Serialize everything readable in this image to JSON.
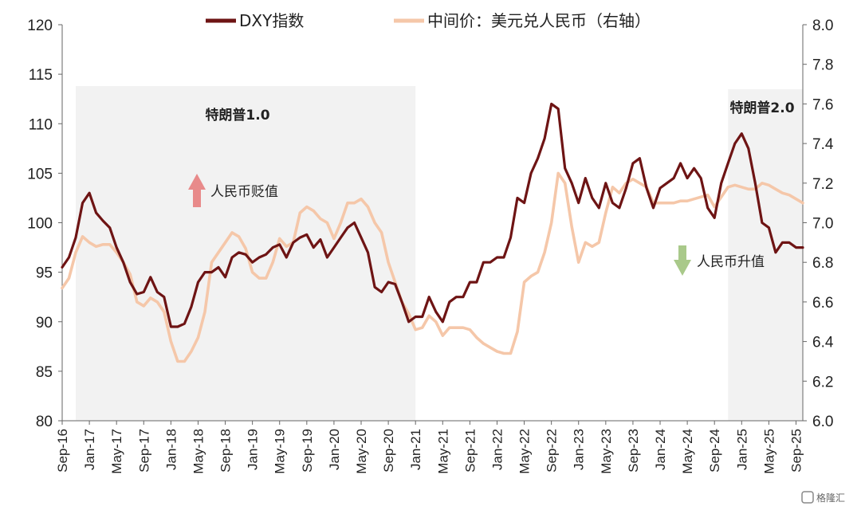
{
  "chart_data": {
    "type": "line",
    "legend": [
      "DXY指数",
      "中间价：美元兑人民币（右轴）"
    ],
    "left_axis": {
      "ylim": [
        80,
        120
      ],
      "ticks": [
        "80",
        "85",
        "90",
        "95",
        "100",
        "105",
        "110",
        "115",
        "120"
      ]
    },
    "right_axis": {
      "ylim": [
        6.0,
        8.0
      ],
      "ticks": [
        "6.0",
        "6.2",
        "6.4",
        "6.6",
        "6.8",
        "7.0",
        "7.2",
        "7.4",
        "7.6",
        "7.8",
        "8.0"
      ]
    },
    "x_range": [
      "2016-09",
      "2025-10"
    ],
    "x_tick_labels": [
      "Sep-16",
      "Jan-17",
      "May-17",
      "Sep-17",
      "Jan-18",
      "May-18",
      "Sep-18",
      "Jan-19",
      "May-19",
      "Sep-19",
      "Jan-20",
      "May-20",
      "Sep-20",
      "Jan-21",
      "May-21",
      "Sep-21",
      "Jan-22",
      "May-22",
      "Sep-22",
      "Jan-23",
      "May-23",
      "Sep-23",
      "Jan-24",
      "May-24",
      "Sep-24",
      "Jan-25",
      "May-25",
      "Sep-25"
    ],
    "regions": [
      {
        "label": "特朗普1.0",
        "start": "2016-11",
        "end": "2021-01"
      },
      {
        "label": "特朗普2.0",
        "start": "2024-11",
        "end": "2025-10"
      }
    ],
    "annotations": [
      {
        "text": "人民币贬值",
        "arrow": "up",
        "color": "#e88a8a"
      },
      {
        "text": "人民币升值",
        "arrow": "down",
        "color": "#a9c98a"
      }
    ],
    "series": [
      {
        "name": "DXY指数",
        "axis": "left",
        "color": "#6e1414",
        "x": [
          "2016-09",
          "2016-10",
          "2016-11",
          "2016-12",
          "2017-01",
          "2017-02",
          "2017-03",
          "2017-04",
          "2017-05",
          "2017-06",
          "2017-07",
          "2017-08",
          "2017-09",
          "2017-10",
          "2017-11",
          "2017-12",
          "2018-01",
          "2018-02",
          "2018-03",
          "2018-04",
          "2018-05",
          "2018-06",
          "2018-07",
          "2018-08",
          "2018-09",
          "2018-10",
          "2018-11",
          "2018-12",
          "2019-01",
          "2019-02",
          "2019-03",
          "2019-04",
          "2019-05",
          "2019-06",
          "2019-07",
          "2019-08",
          "2019-09",
          "2019-10",
          "2019-11",
          "2019-12",
          "2020-01",
          "2020-02",
          "2020-03",
          "2020-04",
          "2020-05",
          "2020-06",
          "2020-07",
          "2020-08",
          "2020-09",
          "2020-10",
          "2020-11",
          "2020-12",
          "2021-01",
          "2021-02",
          "2021-03",
          "2021-04",
          "2021-05",
          "2021-06",
          "2021-07",
          "2021-08",
          "2021-09",
          "2021-10",
          "2021-11",
          "2021-12",
          "2022-01",
          "2022-02",
          "2022-03",
          "2022-04",
          "2022-05",
          "2022-06",
          "2022-07",
          "2022-08",
          "2022-09",
          "2022-10",
          "2022-11",
          "2022-12",
          "2023-01",
          "2023-02",
          "2023-03",
          "2023-04",
          "2023-05",
          "2023-06",
          "2023-07",
          "2023-08",
          "2023-09",
          "2023-10",
          "2023-11",
          "2023-12",
          "2024-01",
          "2024-02",
          "2024-03",
          "2024-04",
          "2024-05",
          "2024-06",
          "2024-07",
          "2024-08",
          "2024-09",
          "2024-10",
          "2024-11",
          "2024-12",
          "2025-01",
          "2025-02",
          "2025-03",
          "2025-04",
          "2025-05",
          "2025-06",
          "2025-07",
          "2025-08",
          "2025-09",
          "2025-10"
        ],
        "values": [
          95.5,
          96.5,
          98.5,
          102.0,
          103.0,
          101.0,
          100.2,
          99.5,
          97.5,
          96.0,
          94.0,
          92.8,
          93.0,
          94.5,
          93.0,
          92.5,
          89.5,
          89.5,
          89.8,
          91.5,
          94.0,
          95.0,
          95.0,
          95.5,
          94.5,
          96.5,
          97.0,
          96.8,
          96.0,
          96.5,
          96.8,
          97.5,
          97.8,
          96.5,
          98.0,
          98.5,
          98.8,
          97.5,
          98.3,
          96.5,
          97.5,
          98.5,
          99.5,
          100.0,
          98.5,
          97.0,
          93.5,
          93.0,
          94.0,
          93.8,
          92.0,
          90.0,
          90.5,
          90.5,
          92.5,
          91.0,
          90.0,
          92.0,
          92.5,
          92.5,
          94.0,
          94.0,
          96.0,
          96.0,
          96.5,
          96.5,
          98.5,
          102.5,
          102.0,
          105.0,
          106.5,
          108.5,
          112.0,
          111.5,
          105.5,
          104.0,
          102.0,
          104.5,
          102.5,
          101.5,
          104.0,
          102.0,
          101.5,
          103.5,
          106.0,
          106.5,
          103.5,
          101.5,
          103.5,
          104.0,
          104.5,
          106.0,
          104.5,
          105.5,
          104.5,
          101.5,
          100.5,
          104.0,
          106.0,
          108.0,
          109.0,
          107.5,
          104.0,
          100.0,
          99.5,
          97.0,
          98.0,
          98.0,
          97.5,
          97.5
        ]
      },
      {
        "name": "中间价：美元兑人民币（右轴）",
        "axis": "right",
        "color": "#f5c7a9",
        "x": [
          "2016-09",
          "2016-10",
          "2016-11",
          "2016-12",
          "2017-01",
          "2017-02",
          "2017-03",
          "2017-04",
          "2017-05",
          "2017-06",
          "2017-07",
          "2017-08",
          "2017-09",
          "2017-10",
          "2017-11",
          "2017-12",
          "2018-01",
          "2018-02",
          "2018-03",
          "2018-04",
          "2018-05",
          "2018-06",
          "2018-07",
          "2018-08",
          "2018-09",
          "2018-10",
          "2018-11",
          "2018-12",
          "2019-01",
          "2019-02",
          "2019-03",
          "2019-04",
          "2019-05",
          "2019-06",
          "2019-07",
          "2019-08",
          "2019-09",
          "2019-10",
          "2019-11",
          "2019-12",
          "2020-01",
          "2020-02",
          "2020-03",
          "2020-04",
          "2020-05",
          "2020-06",
          "2020-07",
          "2020-08",
          "2020-09",
          "2020-10",
          "2020-11",
          "2020-12",
          "2021-01",
          "2021-02",
          "2021-03",
          "2021-04",
          "2021-05",
          "2021-06",
          "2021-07",
          "2021-08",
          "2021-09",
          "2021-10",
          "2021-11",
          "2021-12",
          "2022-01",
          "2022-02",
          "2022-03",
          "2022-04",
          "2022-05",
          "2022-06",
          "2022-07",
          "2022-08",
          "2022-09",
          "2022-10",
          "2022-11",
          "2022-12",
          "2023-01",
          "2023-02",
          "2023-03",
          "2023-04",
          "2023-05",
          "2023-06",
          "2023-07",
          "2023-08",
          "2023-09",
          "2023-10",
          "2023-11",
          "2023-12",
          "2024-01",
          "2024-02",
          "2024-03",
          "2024-04",
          "2024-05",
          "2024-06",
          "2024-07",
          "2024-08",
          "2024-09",
          "2024-10",
          "2024-11",
          "2024-12",
          "2025-01",
          "2025-02",
          "2025-03",
          "2025-04",
          "2025-05",
          "2025-06",
          "2025-07",
          "2025-08",
          "2025-09",
          "2025-10"
        ],
        "values": [
          6.67,
          6.72,
          6.85,
          6.93,
          6.9,
          6.88,
          6.89,
          6.89,
          6.85,
          6.8,
          6.74,
          6.6,
          6.58,
          6.62,
          6.6,
          6.55,
          6.4,
          6.3,
          6.3,
          6.35,
          6.42,
          6.55,
          6.8,
          6.85,
          6.9,
          6.95,
          6.93,
          6.87,
          6.75,
          6.72,
          6.72,
          6.8,
          6.92,
          6.88,
          6.9,
          7.05,
          7.08,
          7.06,
          7.02,
          7.0,
          6.92,
          7.0,
          7.1,
          7.1,
          7.12,
          7.08,
          7.0,
          6.95,
          6.8,
          6.7,
          6.6,
          6.54,
          6.46,
          6.47,
          6.53,
          6.5,
          6.43,
          6.47,
          6.47,
          6.47,
          6.46,
          6.42,
          6.39,
          6.37,
          6.35,
          6.34,
          6.34,
          6.45,
          6.7,
          6.73,
          6.75,
          6.85,
          7.0,
          7.25,
          7.2,
          6.98,
          6.8,
          6.9,
          6.88,
          6.9,
          7.05,
          7.18,
          7.15,
          7.2,
          7.22,
          7.2,
          7.18,
          7.1,
          7.1,
          7.1,
          7.1,
          7.11,
          7.11,
          7.12,
          7.13,
          7.14,
          7.08,
          7.13,
          7.18,
          7.19,
          7.18,
          7.17,
          7.17,
          7.2,
          7.19,
          7.17,
          7.15,
          7.14,
          7.12,
          7.1
        ]
      }
    ]
  },
  "watermark": "格隆汇"
}
